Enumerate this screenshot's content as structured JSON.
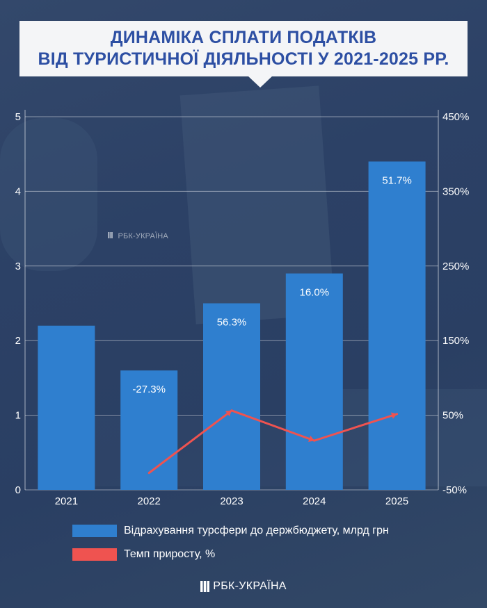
{
  "title": {
    "line1": "Динаміка сплати податків",
    "line2": "від туристичної діяльності у 2021-2025 рр."
  },
  "colors": {
    "bars": "#2f7fcf",
    "line": "#ef5350",
    "title_text": "#2d4fa3",
    "title_bg": "#f4f5f7",
    "axis_text": "#ffffff",
    "background": "#2c4166"
  },
  "chart_data": {
    "type": "bar",
    "categories": [
      "2021",
      "2022",
      "2023",
      "2024",
      "2025"
    ],
    "series": [
      {
        "name": "Відрахування турсфери до держбюджету, млрд грн",
        "type": "bar",
        "axis": "left",
        "values": [
          2.2,
          1.6,
          2.5,
          2.9,
          4.4
        ]
      },
      {
        "name": "Темп приросту, %",
        "type": "line",
        "axis": "right",
        "values": [
          null,
          -27.3,
          56.3,
          16.0,
          51.7
        ]
      }
    ],
    "data_labels": [
      "",
      "-27.3%",
      "56.3%",
      "16.0%",
      "51.7%"
    ],
    "y_left": {
      "min": 0,
      "max": 5,
      "ticks": [
        "0",
        "1",
        "2",
        "3",
        "4",
        "5"
      ]
    },
    "y_right": {
      "min": -50,
      "max": 450,
      "ticks": [
        "-50%",
        "50%",
        "150%",
        "250%",
        "350%",
        "450%"
      ]
    },
    "grid": true,
    "legend_position": "bottom"
  },
  "legend": {
    "bars_label": "Відрахування турсфери до держбюджету, млрд грн",
    "line_label": "Темп приросту, %"
  },
  "watermark": {
    "text": "РБК-УКРАЇНА"
  },
  "footer": {
    "brand": "РБК-УКРАЇНА"
  }
}
